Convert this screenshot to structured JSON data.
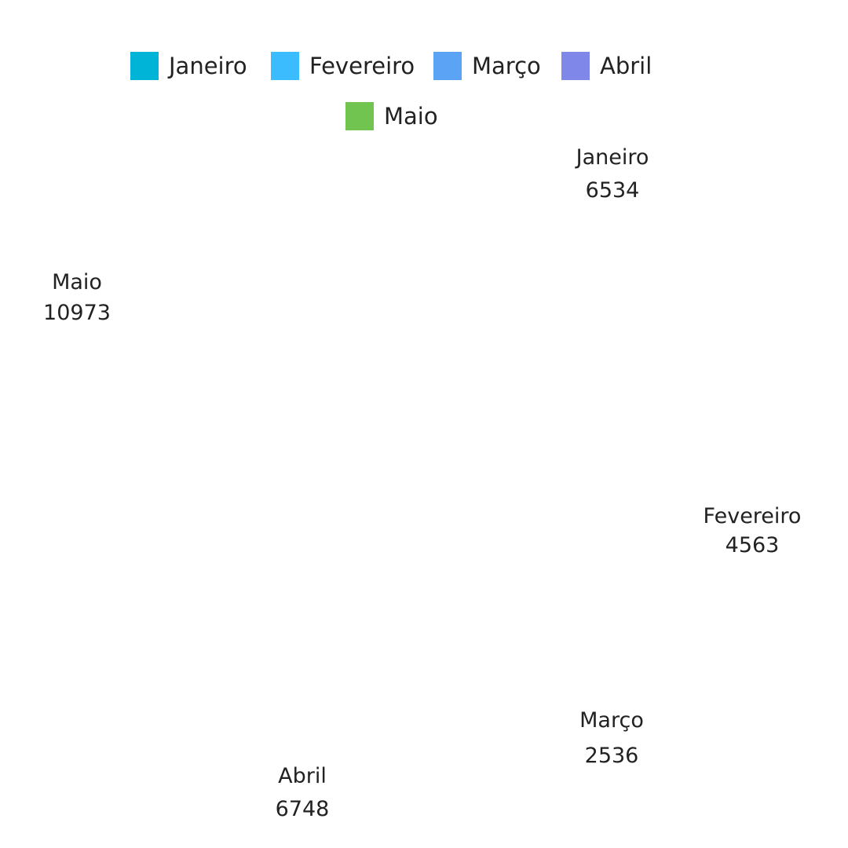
{
  "chart_data": {
    "type": "pie",
    "title": "",
    "legend_position": "top",
    "categories": [
      "Janeiro",
      "Fevereiro",
      "Março",
      "Abril",
      "Maio"
    ],
    "values": [
      6534,
      4563,
      2536,
      6748,
      10973
    ],
    "colors": [
      "#00b4d8",
      "#3bbcff",
      "#5ba4f5",
      "#7f88e8",
      "#72c450"
    ],
    "slices_rendered": false
  }
}
